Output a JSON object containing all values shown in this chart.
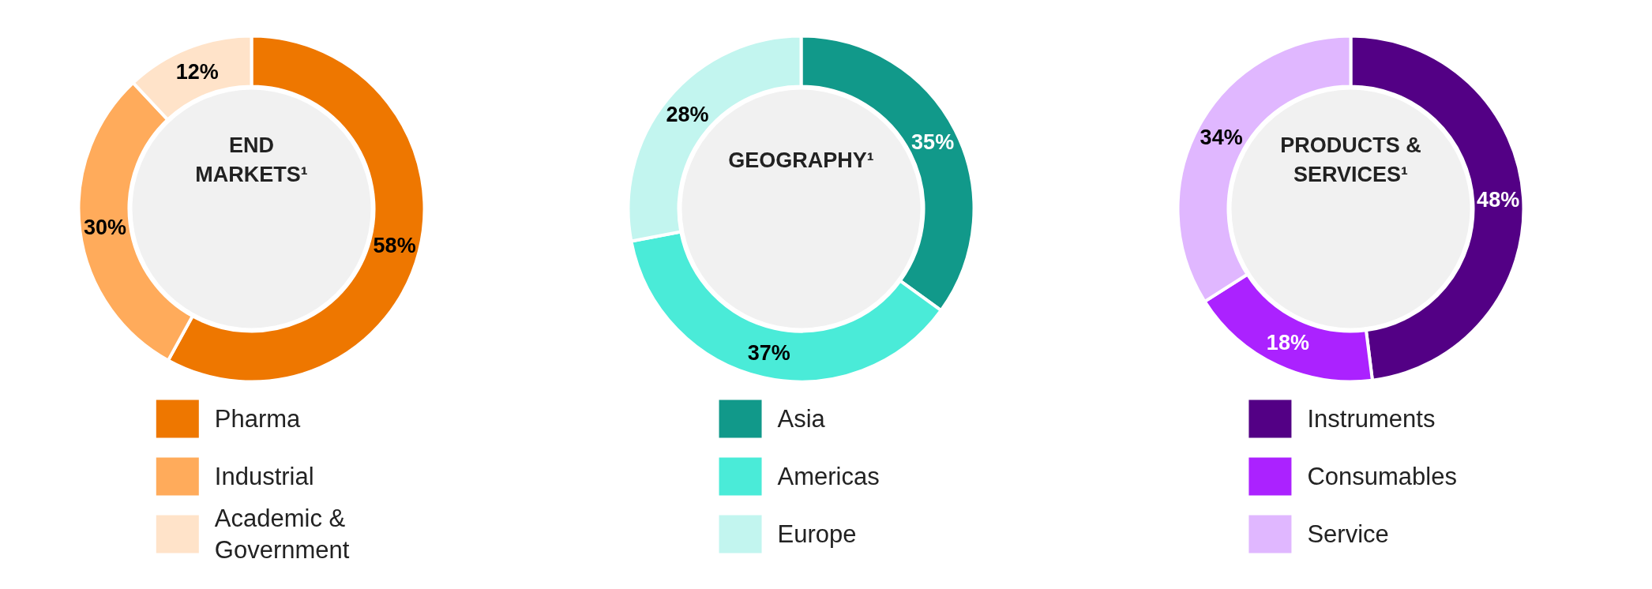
{
  "chart_data": [
    {
      "type": "donut",
      "title": "END MARKETS¹",
      "categories": [
        "Pharma",
        "Industrial",
        "Academic & Government"
      ],
      "values": [
        58,
        30,
        12
      ],
      "colors": [
        "#ee7700",
        "#ffab5b",
        "#ffe3c9"
      ],
      "value_labels": [
        "58%",
        "30%",
        "12%"
      ],
      "legend": "bottom"
    },
    {
      "type": "donut",
      "title": "GEOGRAPHY¹",
      "categories": [
        "Asia",
        "Americas",
        "Europe"
      ],
      "values": [
        35,
        37,
        28
      ],
      "colors": [
        "#11998a",
        "#4aebd8",
        "#c2f5ef"
      ],
      "value_labels": [
        "35%",
        "37%",
        "28%"
      ],
      "legend": "bottom"
    },
    {
      "type": "donut",
      "title": "PRODUCTS & SERVICES¹",
      "categories": [
        "Instruments",
        "Consumables",
        "Service"
      ],
      "values": [
        48,
        18,
        34
      ],
      "colors": [
        "#530085",
        "#ab22ff",
        "#e0b7ff"
      ],
      "value_labels": [
        "48%",
        "18%",
        "34%"
      ],
      "legend": "bottom"
    }
  ]
}
